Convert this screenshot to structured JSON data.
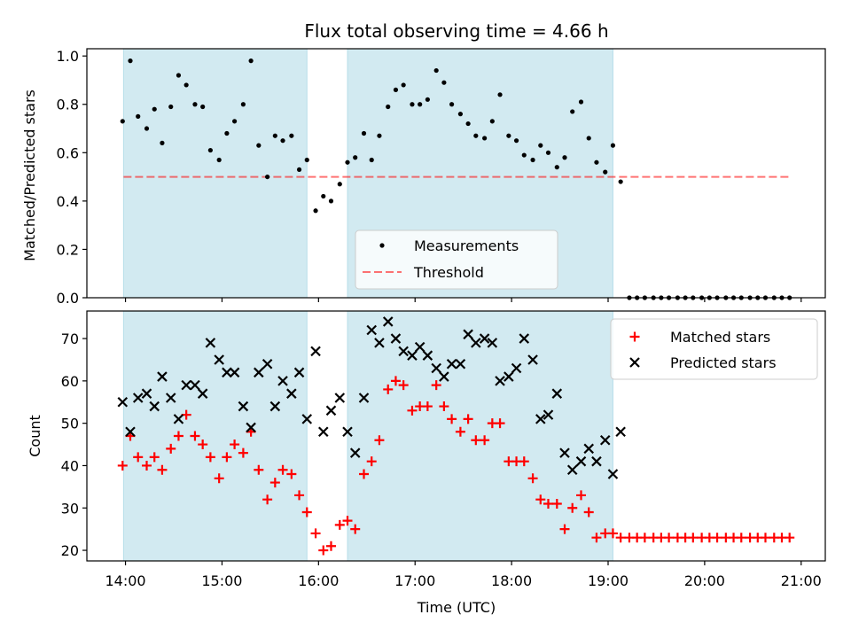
{
  "chart_data": [
    {
      "type": "scatter",
      "title": "Flux total observing time = 4.66 h",
      "ylabel": "Matched/Predicted stars",
      "ylim": [
        0,
        1.03
      ],
      "xlim": [
        13.6,
        21.25
      ],
      "yticks": [
        0.0,
        0.2,
        0.4,
        0.6,
        0.8,
        1.0
      ],
      "ytick_labels": [
        "0.0",
        "0.2",
        "0.4",
        "0.6",
        "0.8",
        "1.0"
      ],
      "grid": false,
      "legend_position": "lower-center",
      "shaded_intervals": [
        [
          13.98,
          15.88
        ],
        [
          16.3,
          19.05
        ]
      ],
      "shade_color": "#add8e6",
      "threshold": {
        "name": "Threshold",
        "value": 0.5,
        "color": "#ff0000"
      },
      "series": [
        {
          "name": "Measurements",
          "marker": "dot",
          "color": "#000000",
          "x": [
            13.97,
            14.05,
            14.13,
            14.22,
            14.3,
            14.38,
            14.47,
            14.55,
            14.63,
            14.72,
            14.8,
            14.88,
            14.97,
            15.05,
            15.13,
            15.22,
            15.3,
            15.38,
            15.47,
            15.55,
            15.63,
            15.72,
            15.8,
            15.88,
            15.97,
            16.05,
            16.13,
            16.22,
            16.3,
            16.38,
            16.47,
            16.55,
            16.63,
            16.72,
            16.8,
            16.88,
            16.97,
            17.05,
            17.13,
            17.22,
            17.3,
            17.38,
            17.47,
            17.55,
            17.63,
            17.72,
            17.8,
            17.88,
            17.97,
            18.05,
            18.13,
            18.22,
            18.3,
            18.38,
            18.47,
            18.55,
            18.63,
            18.72,
            18.8,
            18.88,
            18.97,
            19.05,
            19.13,
            19.22,
            19.3,
            19.38,
            19.47,
            19.55,
            19.63,
            19.72,
            19.8,
            19.88,
            19.97,
            20.05,
            20.13,
            20.22,
            20.3,
            20.38,
            20.47,
            20.55,
            20.63,
            20.72,
            20.8,
            20.88
          ],
          "y": [
            0.73,
            0.98,
            0.75,
            0.7,
            0.78,
            0.64,
            0.79,
            0.92,
            0.88,
            0.8,
            0.79,
            0.61,
            0.57,
            0.68,
            0.73,
            0.8,
            0.98,
            0.63,
            0.5,
            0.67,
            0.65,
            0.67,
            0.53,
            0.57,
            0.36,
            0.42,
            0.4,
            0.47,
            0.56,
            0.58,
            0.68,
            0.57,
            0.67,
            0.79,
            0.86,
            0.88,
            0.8,
            0.8,
            0.82,
            0.94,
            0.89,
            0.8,
            0.76,
            0.72,
            0.67,
            0.66,
            0.73,
            0.84,
            0.67,
            0.65,
            0.59,
            0.57,
            0.63,
            0.6,
            0.54,
            0.58,
            0.77,
            0.81,
            0.66,
            0.56,
            0.52,
            0.63,
            0.48,
            0,
            0,
            0,
            0,
            0,
            0,
            0,
            0,
            0,
            0,
            0,
            0,
            0,
            0,
            0,
            0,
            0,
            0,
            0,
            0,
            0
          ]
        }
      ]
    },
    {
      "type": "scatter",
      "title": "",
      "xlabel": "Time (UTC)",
      "ylabel": "Count",
      "ylim": [
        17.5,
        76.5
      ],
      "xlim": [
        13.6,
        21.25
      ],
      "yticks": [
        20,
        30,
        40,
        50,
        60,
        70
      ],
      "ytick_labels": [
        "20",
        "30",
        "40",
        "50",
        "60",
        "70"
      ],
      "xticks": [
        14,
        15,
        16,
        17,
        18,
        19,
        20,
        21
      ],
      "xtick_labels": [
        "14:00",
        "15:00",
        "16:00",
        "17:00",
        "18:00",
        "19:00",
        "20:00",
        "21:00"
      ],
      "grid": false,
      "legend_position": "upper-right",
      "shaded_intervals": [
        [
          13.98,
          15.88
        ],
        [
          16.3,
          19.05
        ]
      ],
      "shade_color": "#add8e6",
      "series": [
        {
          "name": "Matched stars",
          "marker": "plus",
          "color": "#ff0000",
          "x": [
            13.97,
            14.05,
            14.13,
            14.22,
            14.3,
            14.38,
            14.47,
            14.55,
            14.63,
            14.72,
            14.8,
            14.88,
            14.97,
            15.05,
            15.13,
            15.22,
            15.3,
            15.38,
            15.47,
            15.55,
            15.63,
            15.72,
            15.8,
            15.88,
            15.97,
            16.05,
            16.13,
            16.22,
            16.3,
            16.38,
            16.47,
            16.55,
            16.63,
            16.72,
            16.8,
            16.88,
            16.97,
            17.05,
            17.13,
            17.22,
            17.3,
            17.38,
            17.47,
            17.55,
            17.63,
            17.72,
            17.8,
            17.88,
            17.97,
            18.05,
            18.13,
            18.22,
            18.3,
            18.38,
            18.47,
            18.55,
            18.63,
            18.72,
            18.8,
            18.88,
            18.97,
            19.05,
            19.13,
            19.22,
            19.3,
            19.38,
            19.47,
            19.55,
            19.63,
            19.72,
            19.8,
            19.88,
            19.97,
            20.05,
            20.13,
            20.22,
            20.3,
            20.38,
            20.47,
            20.55,
            20.63,
            20.72,
            20.8,
            20.88
          ],
          "y": [
            40,
            47,
            42,
            40,
            42,
            39,
            44,
            47,
            52,
            47,
            45,
            42,
            37,
            42,
            45,
            43,
            48,
            39,
            32,
            36,
            39,
            38,
            33,
            29,
            24,
            20,
            21,
            26,
            27,
            25,
            38,
            41,
            46,
            58,
            60,
            59,
            53,
            54,
            54,
            59,
            54,
            51,
            48,
            51,
            46,
            46,
            50,
            50,
            41,
            41,
            41,
            37,
            32,
            31,
            31,
            25,
            30,
            33,
            29,
            23,
            24,
            24,
            23,
            23,
            23,
            23,
            23,
            23,
            23,
            23,
            23,
            23,
            23,
            23,
            23,
            23,
            23,
            23,
            23,
            23,
            23,
            23,
            23,
            23
          ]
        },
        {
          "name": "Predicted stars",
          "marker": "x",
          "color": "#000000",
          "x": [
            13.97,
            14.05,
            14.13,
            14.22,
            14.3,
            14.38,
            14.47,
            14.55,
            14.63,
            14.72,
            14.8,
            14.88,
            14.97,
            15.05,
            15.13,
            15.22,
            15.3,
            15.38,
            15.47,
            15.55,
            15.63,
            15.72,
            15.8,
            15.88,
            15.97,
            16.05,
            16.13,
            16.22,
            16.3,
            16.38,
            16.47,
            16.55,
            16.63,
            16.72,
            16.8,
            16.88,
            16.97,
            17.05,
            17.13,
            17.22,
            17.3,
            17.38,
            17.47,
            17.55,
            17.63,
            17.72,
            17.8,
            17.88,
            17.97,
            18.05,
            18.13,
            18.22,
            18.3,
            18.38,
            18.47,
            18.55,
            18.63,
            18.72,
            18.8,
            18.88,
            18.97,
            19.05,
            19.13
          ],
          "y": [
            55,
            48,
            56,
            57,
            54,
            61,
            56,
            51,
            59,
            59,
            57,
            69,
            65,
            62,
            62,
            54,
            49,
            62,
            64,
            54,
            60,
            57,
            62,
            51,
            67,
            48,
            53,
            56,
            48,
            43,
            56,
            72,
            69,
            74,
            70,
            67,
            66,
            68,
            66,
            63,
            61,
            64,
            64,
            71,
            69,
            70,
            69,
            60,
            61,
            63,
            70,
            65,
            51,
            52,
            57,
            43,
            39,
            41,
            44,
            41,
            46,
            38,
            48
          ]
        }
      ]
    }
  ]
}
